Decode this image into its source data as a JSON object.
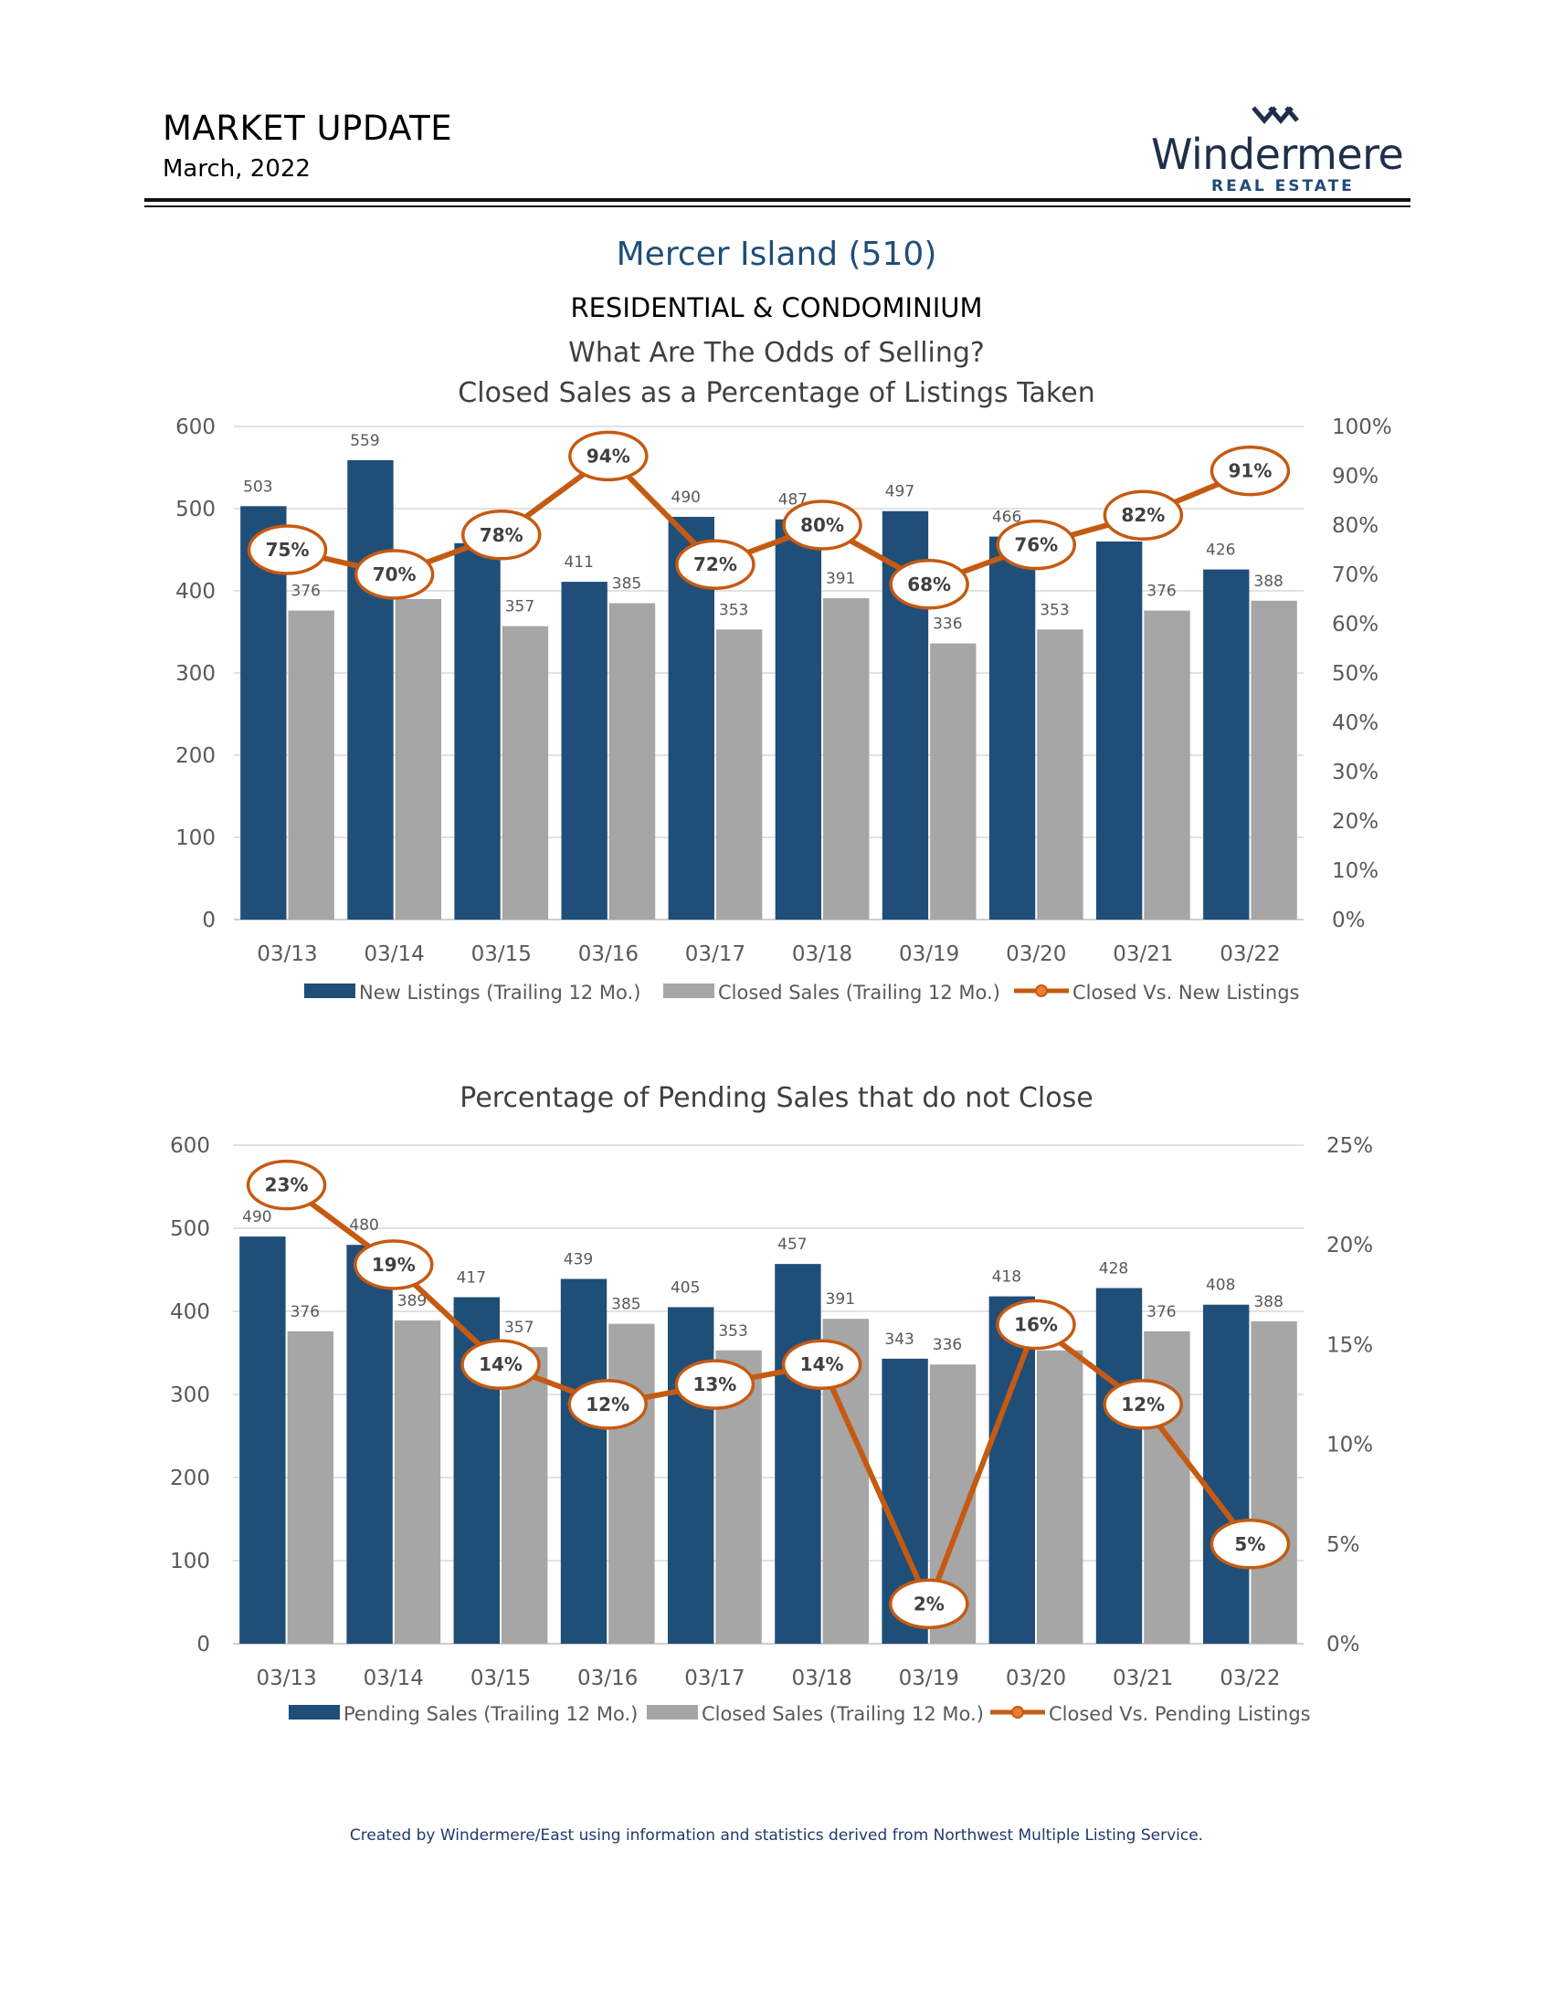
{
  "header": {
    "title": "MARKET UPDATE",
    "date": "March, 2022"
  },
  "logo": {
    "name": "Windermere",
    "sub": "REAL ESTATE"
  },
  "region": "Mercer Island (510)",
  "subtitle": "RESIDENTIAL & CONDOMINIUM",
  "footnote": "Created by Windermere/East using information and statistics derived from Northwest Multiple Listing Service.",
  "colors": {
    "navy": "#1f4e79",
    "gray": "#a6a6a6",
    "orange": "#c55a11",
    "grid": "#d9d9d9",
    "axis_text": "#595959"
  },
  "chart_data": [
    {
      "type": "bar",
      "title": [
        "What Are The Odds of Selling?",
        "Closed Sales as a Percentage of Listings Taken"
      ],
      "categories": [
        "03/13",
        "03/14",
        "03/15",
        "03/16",
        "03/17",
        "03/18",
        "03/19",
        "03/20",
        "03/21",
        "03/22"
      ],
      "series": [
        {
          "name": "New Listings (Trailing 12 Mo.)",
          "values": [
            503,
            559,
            458,
            411,
            490,
            487,
            497,
            466,
            460,
            426
          ],
          "labels": [
            "503",
            "559",
            "",
            "411",
            "490",
            "487",
            "497",
            "466",
            "",
            "426"
          ]
        },
        {
          "name": "Closed Sales (Trailing 12 Mo.)",
          "values": [
            376,
            390,
            357,
            385,
            353,
            391,
            336,
            353,
            376,
            388
          ],
          "labels": [
            "376",
            "",
            "357",
            "385",
            "353",
            "391",
            "336",
            "353",
            "376",
            "388"
          ]
        }
      ],
      "line": {
        "name": "Closed Vs. New Listings",
        "values": [
          75,
          70,
          78,
          94,
          72,
          80,
          68,
          76,
          82,
          91
        ],
        "labels": [
          "75%",
          "70%",
          "78%",
          "94%",
          "72%",
          "80%",
          "68%",
          "76%",
          "82%",
          "91%"
        ]
      },
      "ylim": [
        0,
        600
      ],
      "yticks": [
        "0",
        "100",
        "200",
        "300",
        "400",
        "500",
        "600"
      ],
      "y2lim": [
        0,
        100
      ],
      "y2ticks": [
        "0%",
        "10%",
        "20%",
        "30%",
        "40%",
        "50%",
        "60%",
        "70%",
        "80%",
        "90%",
        "100%"
      ],
      "legend": "bottom",
      "grid": true
    },
    {
      "type": "bar",
      "title": [
        "Percentage of Pending Sales that do not Close"
      ],
      "categories": [
        "03/13",
        "03/14",
        "03/15",
        "03/16",
        "03/17",
        "03/18",
        "03/19",
        "03/20",
        "03/21",
        "03/22"
      ],
      "series": [
        {
          "name": "Pending Sales (Trailing 12 Mo.)",
          "values": [
            490,
            480,
            417,
            439,
            405,
            457,
            343,
            418,
            428,
            408
          ],
          "labels": [
            "490",
            "480",
            "417",
            "439",
            "405",
            "457",
            "343",
            "418",
            "428",
            "408"
          ]
        },
        {
          "name": "Closed Sales (Trailing 12 Mo.)",
          "values": [
            376,
            389,
            357,
            385,
            353,
            391,
            336,
            353,
            376,
            388
          ],
          "labels": [
            "376",
            "389",
            "357",
            "385",
            "353",
            "391",
            "336",
            "",
            "376",
            "388"
          ]
        }
      ],
      "line": {
        "name": "Closed Vs. Pending Listings",
        "values": [
          23,
          19,
          14,
          12,
          13,
          14,
          2,
          16,
          12,
          5
        ],
        "labels": [
          "23%",
          "19%",
          "14%",
          "12%",
          "13%",
          "14%",
          "2%",
          "16%",
          "12%",
          "5%"
        ]
      },
      "ylim": [
        0,
        600
      ],
      "yticks": [
        "0",
        "100",
        "200",
        "300",
        "400",
        "500",
        "600"
      ],
      "y2lim": [
        0,
        25
      ],
      "y2ticks": [
        "0%",
        "5%",
        "10%",
        "15%",
        "20%",
        "25%"
      ],
      "legend": "bottom",
      "grid": true
    }
  ]
}
